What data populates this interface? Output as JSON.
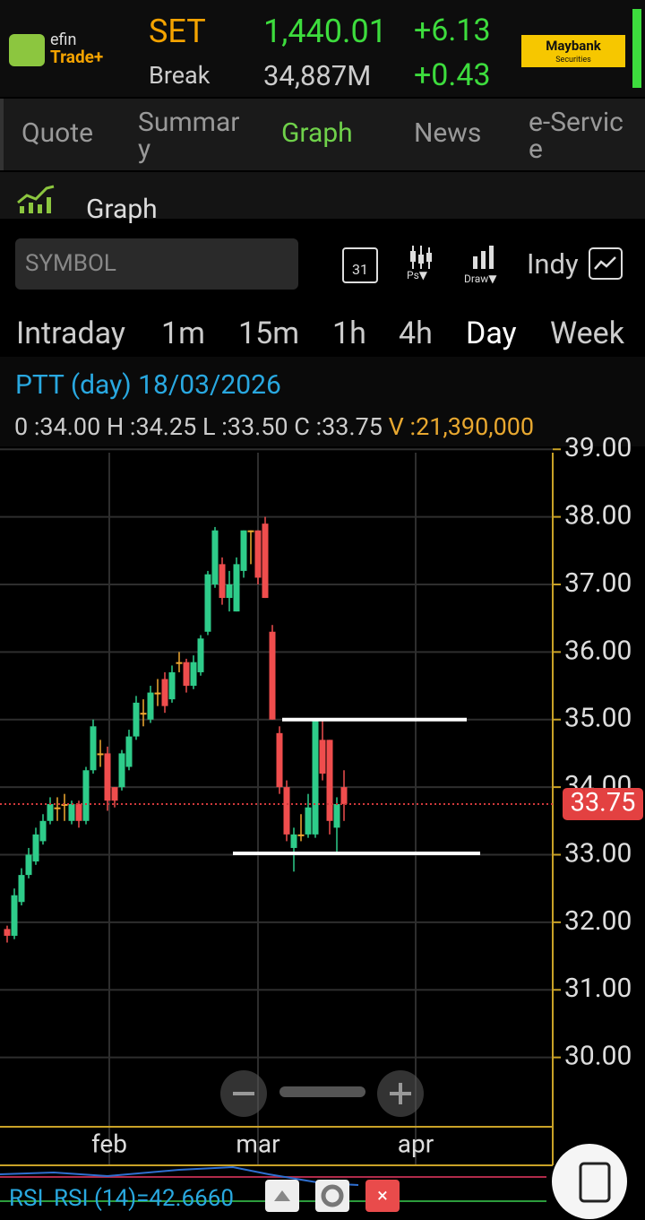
{
  "header": {
    "logo_top": "efin",
    "logo_bottom": "Trade+",
    "index": "SET",
    "value": "1,440.01",
    "change": "+6.13",
    "break_label": "Break",
    "volume": "34,887M",
    "break_change": "+0.43",
    "broker": "Maybank",
    "broker_sub": "Securities"
  },
  "tabs": [
    "Quote",
    "Summary",
    "Graph",
    "News",
    "e-Service"
  ],
  "section_title": "Graph",
  "toolbar": {
    "symbol_placeholder": "SYMBOL",
    "calendar": "31",
    "ps": "Ps▼",
    "draw": "Draw▼",
    "indy": "Indy"
  },
  "periods": [
    "Intraday",
    "1m",
    "15m",
    "1h",
    "4h",
    "Day",
    "Week"
  ],
  "info": {
    "title": "PTT (day) 18/03/2026",
    "o_label": "0 :",
    "o": "34.00",
    "h_label": "H :",
    "h": "34.25",
    "l_label": "L :",
    "l": "33.50",
    "c_label": "C :",
    "c": "33.75",
    "v_label": "V :",
    "v": "21,390,000"
  },
  "chart_data": {
    "type": "candlestick",
    "categories": [
      null,
      null,
      null,
      null,
      null,
      null,
      null,
      null,
      null,
      null,
      null,
      null,
      null,
      null,
      null,
      null,
      null,
      null,
      null,
      null,
      null,
      null,
      null,
      null,
      null,
      null,
      null,
      null,
      null,
      null,
      null,
      null,
      null,
      null,
      null,
      null,
      null,
      null,
      null,
      null,
      null,
      null,
      null,
      null,
      null,
      null,
      null,
      null
    ],
    "open": [
      31.9,
      31.8,
      32.3,
      32.7,
      32.9,
      33.2,
      33.5,
      33.7,
      33.75,
      33.5,
      33.75,
      33.5,
      34.25,
      34.5,
      34.5,
      34.0,
      34.0,
      34.3,
      34.75,
      35.1,
      35.0,
      35.4,
      35.6,
      35.3,
      35.85,
      35.85,
      35.5,
      35.7,
      36.3,
      37.0,
      37.3,
      36.8,
      36.6,
      37.2,
      37.8,
      37.8,
      37.9,
      36.3,
      34.8,
      34.0,
      33.1,
      33.3,
      33.3,
      33.3,
      34.7,
      34.7,
      33.4,
      34.0
    ],
    "high": [
      31.95,
      32.5,
      32.8,
      33.1,
      33.4,
      33.6,
      33.85,
      33.85,
      33.9,
      33.8,
      33.8,
      34.3,
      35.0,
      34.7,
      34.6,
      34.0,
      34.55,
      34.85,
      35.35,
      35.3,
      35.5,
      35.6,
      35.7,
      35.8,
      36.0,
      35.9,
      35.95,
      36.25,
      37.2,
      37.85,
      37.4,
      37.2,
      37.4,
      37.8,
      37.8,
      37.8,
      38.0,
      36.4,
      34.9,
      34.1,
      33.4,
      33.6,
      33.9,
      35.0,
      35.0,
      34.7,
      33.85,
      34.25
    ],
    "low": [
      31.7,
      31.75,
      32.25,
      32.65,
      32.85,
      33.15,
      33.45,
      33.5,
      33.5,
      33.45,
      33.4,
      33.45,
      34.2,
      34.3,
      33.65,
      33.7,
      33.95,
      34.25,
      34.7,
      34.9,
      34.95,
      35.2,
      35.1,
      35.25,
      35.7,
      35.4,
      35.45,
      35.65,
      36.25,
      36.95,
      36.7,
      36.6,
      36.6,
      37.1,
      37.3,
      37.0,
      36.8,
      35.0,
      33.9,
      33.2,
      32.75,
      33.2,
      33.25,
      33.25,
      34.1,
      33.3,
      33.0,
      33.5
    ],
    "close": [
      31.8,
      32.4,
      32.7,
      33.0,
      33.3,
      33.5,
      33.75,
      33.7,
      33.75,
      33.75,
      33.5,
      34.25,
      34.9,
      34.5,
      33.8,
      33.8,
      34.5,
      34.75,
      35.25,
      35.1,
      35.4,
      35.4,
      35.2,
      35.7,
      35.85,
      35.5,
      35.85,
      36.2,
      37.15,
      37.8,
      36.8,
      37.0,
      37.3,
      37.8,
      37.8,
      37.1,
      36.8,
      35.0,
      34.0,
      33.3,
      33.3,
      33.3,
      33.7,
      35.0,
      34.2,
      33.5,
      33.75,
      33.75
    ],
    "up_color": "#2ecc8a",
    "down_color": "#ef4d4d",
    "doji_color": "#f0a830",
    "ylim": [
      29,
      38.95
    ],
    "yticks": [
      {
        "value": 30,
        "label": "30.00"
      },
      {
        "value": 31,
        "label": "31.00"
      },
      {
        "value": 32,
        "label": "32.00"
      },
      {
        "value": 33,
        "label": "33.00"
      },
      {
        "value": 34,
        "label": "34.00"
      },
      {
        "value": 35,
        "label": "35.00"
      },
      {
        "value": 36,
        "label": "36.00"
      },
      {
        "value": 37,
        "label": "37.00"
      },
      {
        "value": 38,
        "label": "38.00"
      },
      {
        "value": 39,
        "label": "39.00"
      }
    ],
    "xticks": [
      {
        "value": 14.25,
        "label": "feb"
      },
      {
        "value": 35,
        "label": "mar"
      },
      {
        "value": 57,
        "label": "apr"
      }
    ],
    "last_price": {
      "value": 33.75,
      "label": "33.75"
    },
    "drawn_levels": [
      35.0,
      33.02
    ],
    "grid": true
  },
  "rsi": {
    "label": "RSI",
    "text": "RSI (14)=42.6660"
  }
}
